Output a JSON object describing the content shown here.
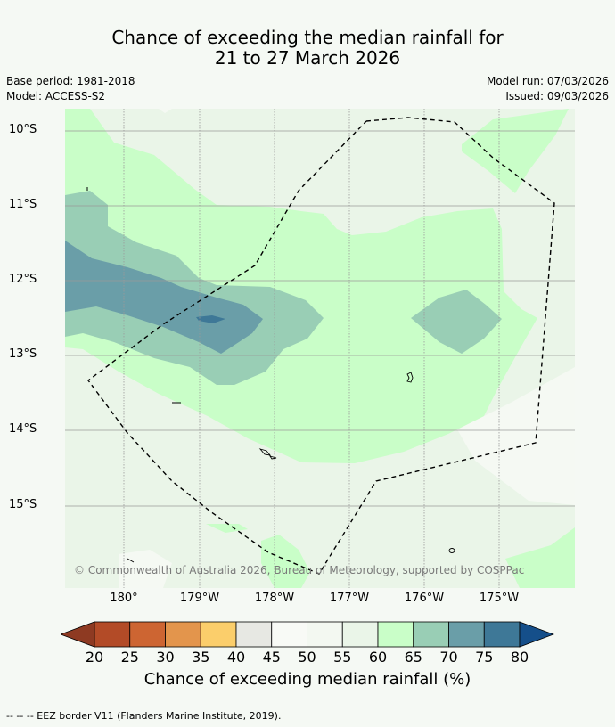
{
  "title_line1": "Chance of exceeding the median rainfall for",
  "title_line2": "21 to 27 March 2026",
  "base_period": "Base period: 1981-2018",
  "model": "Model: ACCESS-S2",
  "model_run": "Model run: 07/03/2026",
  "issued": "Issued: 09/03/2026",
  "lat_labels": [
    "10°S",
    "11°S",
    "12°S",
    "13°S",
    "14°S",
    "15°S"
  ],
  "lon_labels": [
    "180°",
    "179°W",
    "178°W",
    "177°W",
    "176°W",
    "175°W"
  ],
  "copyright": "© Commonwealth of Australia 2026, Bureau of Meteorology, supported by COSPPac",
  "colorbar": {
    "ticks": [
      "20",
      "25",
      "30",
      "35",
      "40",
      "45",
      "50",
      "55",
      "60",
      "65",
      "70",
      "75",
      "80"
    ],
    "label": "Chance of exceeding median rainfall (%)",
    "colors": [
      "#8e3a22",
      "#b34b27",
      "#cd6532",
      "#e3954c",
      "#fbce6b",
      "#e7e8e3",
      "#f8faf6",
      "#f3f8f1",
      "#eaf5e8",
      "#c9fec8",
      "#99ceb5",
      "#6a9ea8",
      "#3e7897",
      "#154f8a"
    ]
  },
  "footer_legend": "--  --  -- EEZ border V11 (Flanders Marine Institute, 2019).",
  "map_colors": {
    "c55_60": "#eaf5e8",
    "c60_65": "#c9fec8",
    "c65_70": "#99ceb5",
    "c70_75": "#6a9ea8",
    "c75_80": "#3e7897"
  }
}
